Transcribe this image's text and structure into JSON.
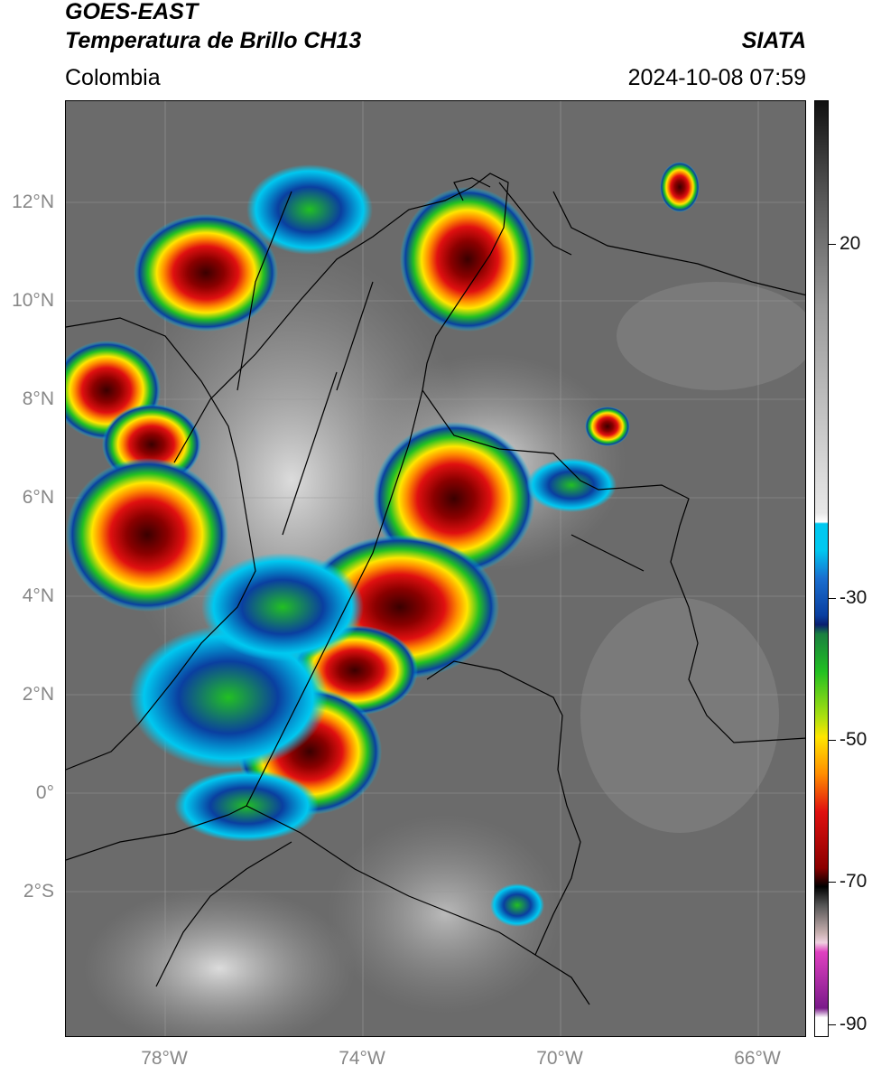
{
  "header": {
    "satellite": "GOES-EAST",
    "product": "Temperatura de Brillo CH13",
    "region": "Colombia",
    "agency": "SIATA",
    "datetime": "2024-10-08 07:59"
  },
  "axes": {
    "lat_labels": [
      "12°N",
      "10°N",
      "8°N",
      "6°N",
      "4°N",
      "2°N",
      "0°",
      "2°S"
    ],
    "lon_labels": [
      "78°W",
      "74°W",
      "70°W",
      "66°W"
    ]
  },
  "colorbar": {
    "labels": [
      "20",
      "-30",
      "-50",
      "-70",
      "-90"
    ],
    "range": [
      -92,
      36
    ]
  },
  "colors": {
    "cold_black": "#000000",
    "deep_red": "#8b0000",
    "red": "#e01010",
    "orange": "#ff8c00",
    "yellow": "#ffe600",
    "green": "#22c022",
    "blue": "#0a3fa0",
    "cyan": "#00c8f0",
    "magenta": "#e040c0",
    "purple": "#7a1a8a"
  },
  "icons": [
    "storm-cell-icon",
    "colorbar-icon"
  ]
}
